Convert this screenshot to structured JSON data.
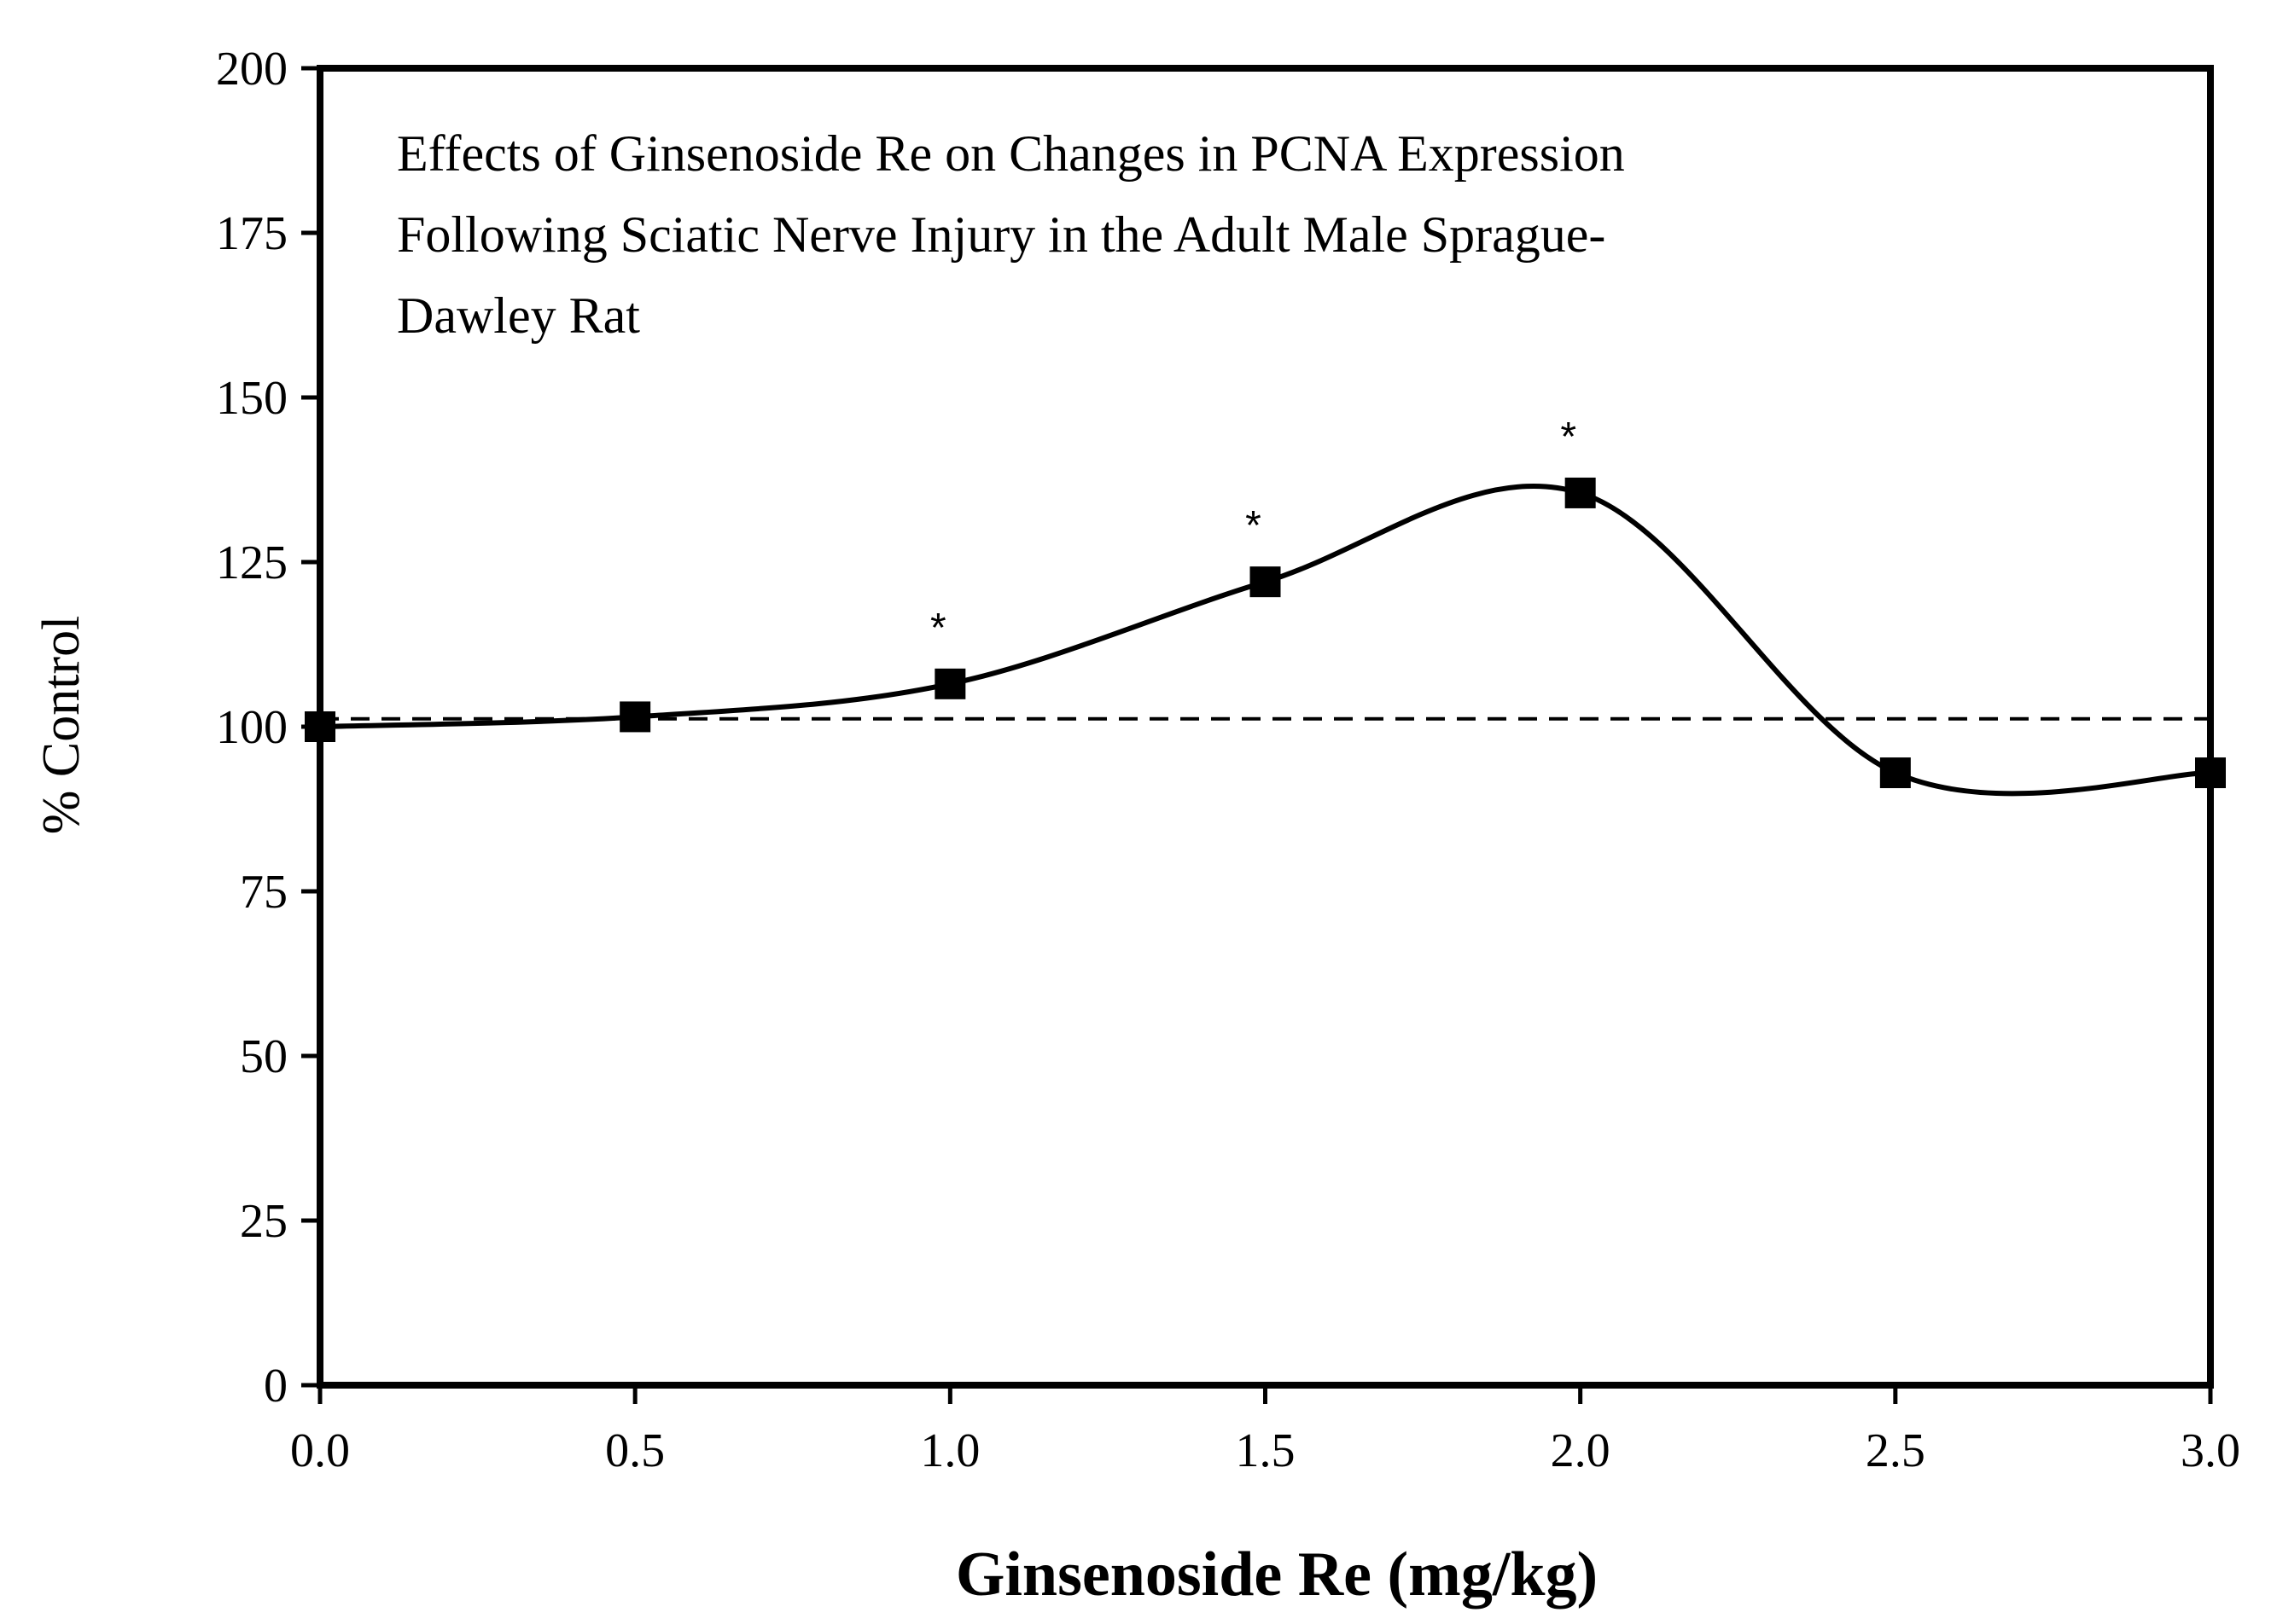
{
  "chart_data": {
    "type": "line",
    "title_lines": [
      "Effects of Ginsenoside Re on Changes in PCNA Expression",
      "Following Sciatic Nerve Injury in the Adult Male Sprague-",
      "Dawley Rat"
    ],
    "xlabel": "Ginsenoside Re (mg/kg)",
    "ylabel": "% Control",
    "xlim": [
      0,
      3
    ],
    "ylim": [
      0,
      200
    ],
    "x_ticks": [
      "0.0",
      "0.5",
      "1.0",
      "1.5",
      "2.0",
      "2.5",
      "3.0"
    ],
    "y_ticks": [
      "0",
      "25",
      "50",
      "75",
      "100",
      "125",
      "150",
      "175",
      "200"
    ],
    "series": [
      {
        "x": [
          0.0,
          0.5,
          1.0,
          1.5,
          2.0,
          2.5,
          3.0
        ],
        "values": [
          100,
          101.5,
          106.5,
          122,
          135.5,
          93,
          93
        ],
        "marker": "square",
        "line": "smooth",
        "color": "#000000"
      }
    ],
    "reference_line": {
      "y": 101.2,
      "style": "dashed"
    },
    "significance": [
      {
        "x": 1.0,
        "label": "*"
      },
      {
        "x": 1.5,
        "label": "*"
      },
      {
        "x": 2.0,
        "label": "*"
      }
    ],
    "grid": false,
    "legend": "none"
  }
}
